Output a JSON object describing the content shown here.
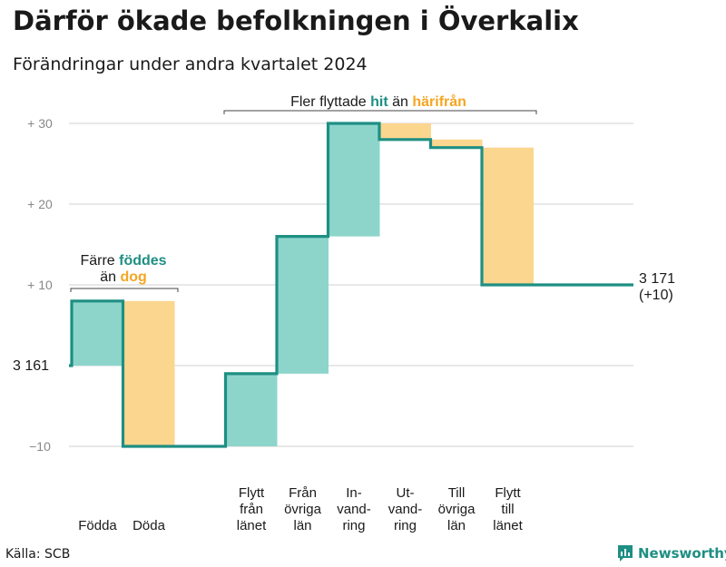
{
  "title": "Därför ökade befolkningen i Överkalix",
  "subtitle": "Förändringar under andra kvartalet 2024",
  "source": "Källa: SCB",
  "brand": {
    "name": "Newsworthy",
    "icon": "newsworthy-logo-icon"
  },
  "colors": {
    "inflow": "#8dd5cb",
    "outflow": "#fbd68e",
    "line": "#1e8f83",
    "in_text": "#1e8f83",
    "out_text": "#f5a623",
    "grid": "#e0e0e0",
    "axis_text": "#888888"
  },
  "annotations": {
    "births_deaths": {
      "line1": "Färre",
      "in_word": "föddes",
      "line2_pre": "än",
      "out_word": "dog"
    },
    "migration": {
      "pre": "Fler flyttade",
      "in_word": "hit",
      "mid": "än",
      "out_word": "härifrån"
    }
  },
  "start_label": "3  161",
  "end_label": {
    "line1": "3 171",
    "line2": "(+10)"
  },
  "chart_data": {
    "type": "waterfall",
    "title": "Därför ökade befolkningen i Överkalix",
    "subtitle": "Förändringar under andra kvartalet 2024",
    "baseline": 3161,
    "end_value": 3171,
    "net_change": 10,
    "ylim": [
      -10,
      30
    ],
    "yticks": [
      -10,
      10,
      20,
      30
    ],
    "ytick_labels": [
      "−10",
      "+  10",
      "+  20",
      "+  30"
    ],
    "grid": true,
    "steps": [
      {
        "label": [
          "Födda"
        ],
        "change": 8,
        "direction": "in"
      },
      {
        "label": [
          "Döda"
        ],
        "change": -18,
        "direction": "out"
      },
      {
        "label": [
          "Flytt",
          "från",
          "länet"
        ],
        "change": 9,
        "direction": "in"
      },
      {
        "label": [
          "Från",
          "övriga",
          "län"
        ],
        "change": 17,
        "direction": "in"
      },
      {
        "label": [
          "In-",
          "vand-",
          "ring"
        ],
        "change": 14,
        "direction": "in"
      },
      {
        "label": [
          "Ut-",
          "vand-",
          "ring"
        ],
        "change": -2,
        "direction": "out"
      },
      {
        "label": [
          "Till",
          "övriga",
          "län"
        ],
        "change": -1,
        "direction": "out"
      },
      {
        "label": [
          "Flytt",
          "till",
          "länet"
        ],
        "change": -17,
        "direction": "out"
      }
    ],
    "gap_after_step": 1
  }
}
